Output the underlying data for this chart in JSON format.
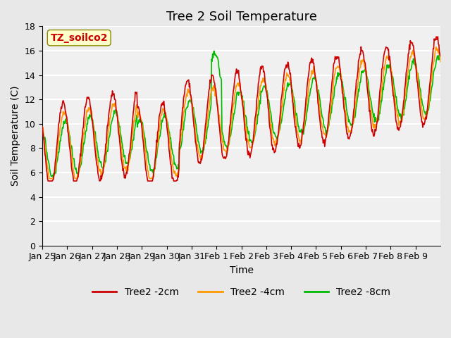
{
  "title": "Tree 2 Soil Temperature",
  "xlabel": "Time",
  "ylabel": "Soil Temperature (C)",
  "ylim": [
    0,
    18
  ],
  "yticks": [
    0,
    2,
    4,
    6,
    8,
    10,
    12,
    14,
    16,
    18
  ],
  "xtick_labels": [
    "Jan 25",
    "Jan 26",
    "Jan 27",
    "Jan 28",
    "Jan 29",
    "Jan 30",
    "Jan 31",
    "Feb 1",
    "Feb 2",
    "Feb 3",
    "Feb 4",
    "Feb 5",
    "Feb 6",
    "Feb 7",
    "Feb 8",
    "Feb 9"
  ],
  "bg_color": "#e8e8e8",
  "plot_bg_color": "#f0f0f0",
  "line_colors": [
    "#cc0000",
    "#ff9900",
    "#00bb00"
  ],
  "line_labels": [
    "Tree2 -2cm",
    "Tree2 -4cm",
    "Tree2 -8cm"
  ],
  "annotation_text": "TZ_soilco2",
  "annotation_color": "#cc0000",
  "annotation_bg": "#ffffcc",
  "title_fontsize": 13,
  "label_fontsize": 10,
  "tick_fontsize": 9,
  "legend_fontsize": 10
}
